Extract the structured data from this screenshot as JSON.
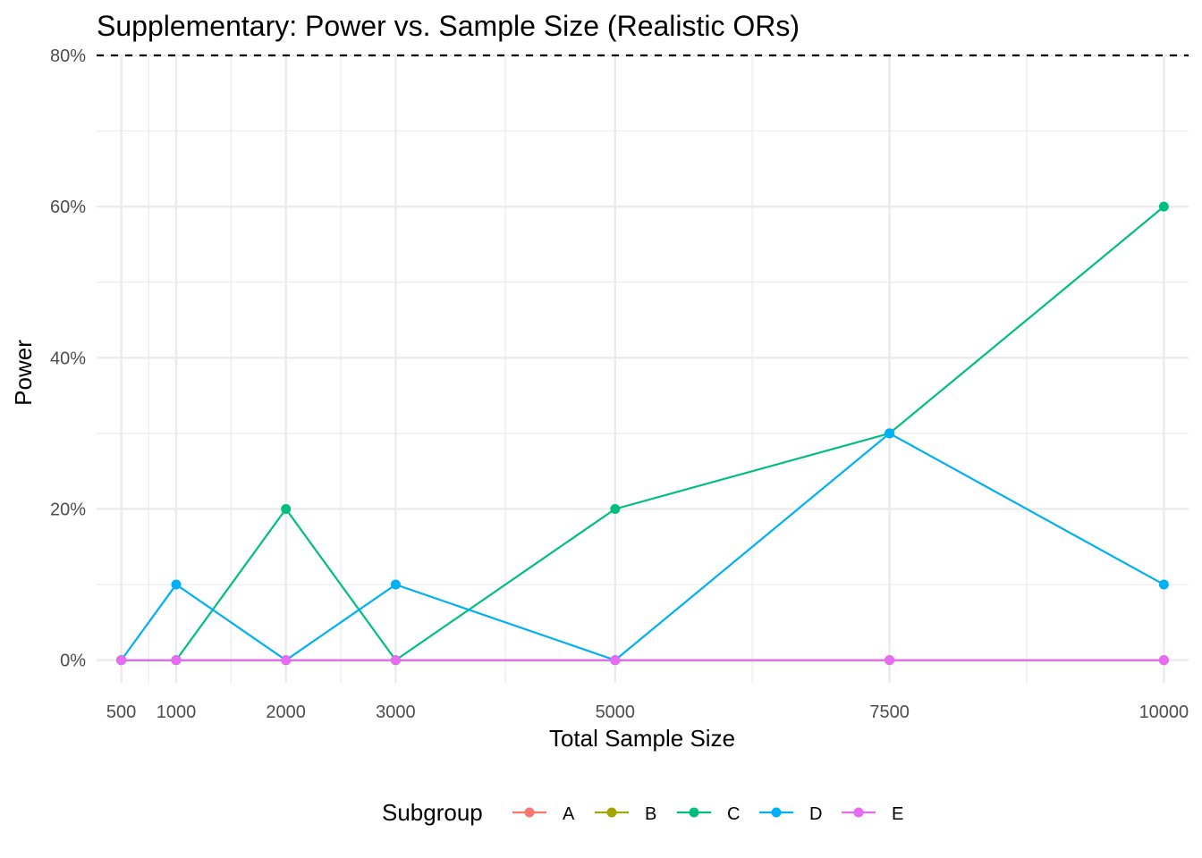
{
  "chart_data": {
    "type": "line",
    "title": "Supplementary: Power vs. Sample Size (Realistic ORs)",
    "xlabel": "Total Sample Size",
    "ylabel": "Power",
    "x": [
      500,
      1000,
      2000,
      3000,
      5000,
      7500,
      10000
    ],
    "x_tick_labels": [
      "500",
      "1000",
      "2000",
      "3000",
      "5000",
      "7500",
      "10000"
    ],
    "xlim": [
      275,
      10225
    ],
    "ylim": [
      -0.03,
      0.8
    ],
    "y_ticks": [
      0,
      0.2,
      0.4,
      0.6,
      0.8
    ],
    "y_tick_labels": [
      "0%",
      "20%",
      "40%",
      "60%",
      "80%"
    ],
    "reference_line": {
      "y": 0.8,
      "style": "dashed",
      "color": "#000000"
    },
    "grid": true,
    "legend": {
      "title": "Subgroup",
      "position": "bottom"
    },
    "series": [
      {
        "name": "A",
        "color": "#F8766D",
        "values": [
          0,
          0,
          0,
          0,
          0,
          0,
          0
        ]
      },
      {
        "name": "B",
        "color": "#A3A500",
        "values": [
          0,
          0,
          0,
          0,
          0,
          0,
          0
        ]
      },
      {
        "name": "C",
        "color": "#00BF7D",
        "values": [
          0,
          0,
          0.2,
          0,
          0.2,
          0.3,
          0.6
        ]
      },
      {
        "name": "D",
        "color": "#00B0F6",
        "values": [
          0,
          0.1,
          0,
          0.1,
          0,
          0.3,
          0.1
        ]
      },
      {
        "name": "E",
        "color": "#E76BF3",
        "values": [
          0,
          0,
          0,
          0,
          0,
          0,
          0
        ]
      }
    ]
  }
}
